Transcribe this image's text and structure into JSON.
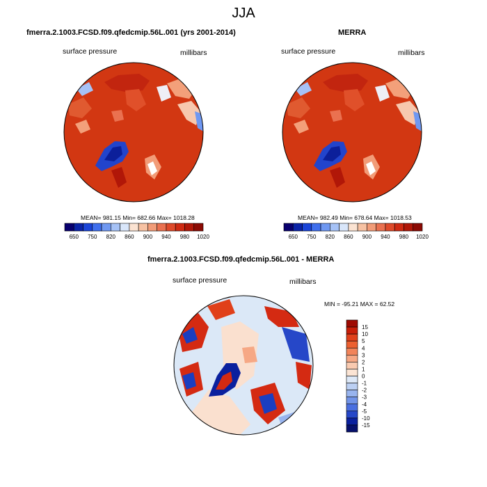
{
  "page": {
    "title": "JJA"
  },
  "left_panel": {
    "title": "fmerra.2.1003.FCSD.f09.qfedcmip.56L.001 (yrs 2001-2014)",
    "variable": "surface pressure",
    "units": "millibars",
    "stats": "MEAN= 981.15  Min= 682.66  Max= 1018.28"
  },
  "right_panel": {
    "title": "MERRA",
    "variable": "surface pressure",
    "units": "millibars",
    "stats": "MEAN= 982.49  Min= 678.64  Max= 1018.53"
  },
  "diff_panel": {
    "title": "fmerra.2.1003.FCSD.f09.qfedcmip.56L.001 - MERRA",
    "variable": "surface pressure",
    "units": "millibars",
    "stats": "MIN = -95.21  MAX =  62.52"
  },
  "colorbar_abs": {
    "labels": [
      "650",
      "750",
      "820",
      "860",
      "900",
      "940",
      "980",
      "1020"
    ],
    "colors": [
      "#08006e",
      "#0a23a8",
      "#1a44d8",
      "#3f6fee",
      "#6f98f2",
      "#a6c2f6",
      "#d9e6fa",
      "#fbe3d2",
      "#f7c2a3",
      "#f29c78",
      "#ea7150",
      "#df4a2a",
      "#cf2a12",
      "#b11708",
      "#8c0a04"
    ]
  },
  "colorbar_diff": {
    "labels": [
      "15",
      "10",
      "5",
      "4",
      "3",
      "2",
      "1",
      "0",
      "-1",
      "-2",
      "-3",
      "-4",
      "-5",
      "-10",
      "-15"
    ],
    "colors": [
      "#9e0a02",
      "#c81e08",
      "#e0401a",
      "#ec6030",
      "#f2845a",
      "#f6a885",
      "#f9cab0",
      "#fbe4d4",
      "#dde8f7",
      "#bcd0f3",
      "#98b4ee",
      "#7294e8",
      "#4a6fe0",
      "#2647c8",
      "#0a209e",
      "#06106c"
    ]
  },
  "map_colors": {
    "land_high": "#c92a10",
    "land_mid": "#e04a22",
    "land_light": "#f3a07a",
    "greenland": "#2244cc",
    "greenland_core": "#0c1f9a",
    "diff_ocean": "#dbe8f7",
    "diff_warm": "#fae0cf",
    "diff_red": "#d42a12",
    "diff_blue": "#1a3ec0"
  }
}
